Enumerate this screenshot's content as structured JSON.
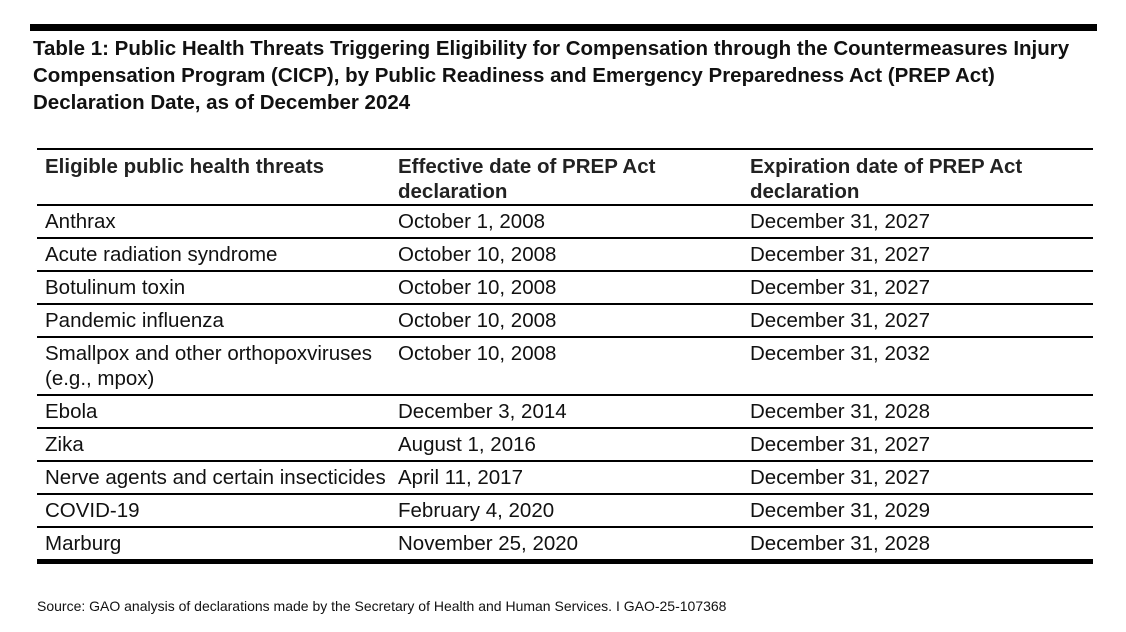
{
  "title": "Table 1: Public Health Threats Triggering Eligibility for Compensation through the Countermeasures Injury Compensation Program (CICP), by Public Readiness and Emergency Preparedness Act (PREP Act) Declaration Date, as of December 2024",
  "columns": [
    "Eligible public health threats",
    "Effective date of PREP Act declaration",
    "Expiration date of PREP Act declaration"
  ],
  "rows": [
    [
      "Anthrax",
      "October 1, 2008",
      "December 31, 2027"
    ],
    [
      "Acute radiation syndrome",
      "October 10, 2008",
      "December 31, 2027"
    ],
    [
      "Botulinum toxin",
      "October 10, 2008",
      "December 31, 2027"
    ],
    [
      "Pandemic influenza",
      "October 10, 2008",
      "December 31, 2027"
    ],
    [
      "Smallpox and other orthopoxviruses (e.g., mpox)",
      "October 10, 2008",
      "December 31, 2032"
    ],
    [
      "Ebola",
      "December 3, 2014",
      "December 31, 2028"
    ],
    [
      "Zika",
      "August 1, 2016",
      "December 31, 2027"
    ],
    [
      "Nerve agents and certain insecticides",
      "April 11, 2017",
      "December 31, 2027"
    ],
    [
      "COVID-19",
      "February 4, 2020",
      "December 31, 2029"
    ],
    [
      "Marburg",
      "November 25, 2020",
      "December 31, 2028"
    ]
  ],
  "source": "Source: GAO analysis of declarations made by the Secretary of Health and Human Services.  I  GAO-25-107368"
}
